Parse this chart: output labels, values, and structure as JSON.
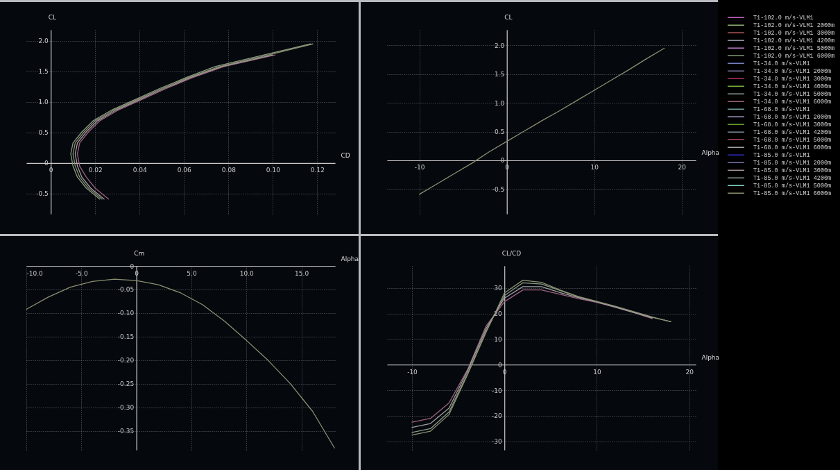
{
  "chart_data": [
    {
      "type": "line",
      "xlabel": "CD",
      "ylabel": "CL",
      "xlim": [
        -0.011,
        0.128
      ],
      "ylim": [
        -0.83,
        2.18
      ],
      "xticks": [
        0,
        0.02,
        0.04,
        0.06,
        0.08,
        {
          "value": 0.1,
          "label": "0.10"
        },
        0.12
      ],
      "yticks": [
        -0.5,
        0,
        0.5,
        {
          "value": 1,
          "label": "1.0"
        },
        1.5,
        {
          "value": 2,
          "label": "2.0"
        }
      ],
      "grid": true,
      "legend": "right",
      "series": [
        {
          "name": "T1-102.0 m/s-VLM1",
          "color": "#c060c0",
          "values": [
            null,
            null,
            null,
            null,
            null,
            null,
            null,
            null,
            null,
            null,
            null,
            null,
            null,
            null,
            null
          ]
        },
        {
          "name": "T1-102.0 m/s-VLM1 2000m",
          "color": "#90b070",
          "values": [
            null,
            null,
            null,
            null,
            null,
            null,
            null,
            null,
            null,
            null,
            null,
            null,
            null,
            null,
            null
          ]
        },
        {
          "name": "T1-102.0 m/s-VLM1 3000m",
          "color": "#c06060",
          "values": [
            null,
            null,
            null,
            null,
            null,
            null,
            null,
            null,
            null,
            null,
            null,
            null,
            null,
            null,
            null
          ]
        },
        {
          "name": "T1-102.0 m/s-VLM1 4200m",
          "color": "#9090a0",
          "values": [
            null,
            null,
            null,
            null,
            null,
            null,
            null,
            null,
            null,
            null,
            null,
            null,
            null,
            null,
            null
          ]
        },
        {
          "name": "T1-102.0 m/s-VLM1 5000m",
          "color": "#c080d0",
          "values": [
            null,
            null,
            null,
            null,
            null,
            null,
            null,
            null,
            null,
            null,
            null,
            null,
            null,
            null,
            null
          ]
        },
        {
          "name": "T1-102.0 m/s-VLM1 6000m",
          "color": "#8a9a80",
          "x": [
            0.022,
            0.016,
            0.012,
            0.01,
            0.009,
            0.01,
            0.014,
            0.019,
            0.027,
            0.038,
            0.049,
            0.061,
            0.074,
            0.096,
            0.117
          ],
          "values": [
            -0.59,
            -0.41,
            -0.23,
            -0.05,
            0.15,
            0.33,
            0.51,
            0.69,
            0.86,
            1.04,
            1.22,
            1.4,
            1.58,
            1.77,
            1.95
          ]
        },
        {
          "name": "T1-34.0 m/s-VLM1",
          "color": "#7080c0",
          "values": [
            null,
            null,
            null,
            null,
            null,
            null,
            null,
            null,
            null,
            null,
            null,
            null,
            null,
            null,
            null
          ]
        },
        {
          "name": "T1-34.0 m/s-VLM1 2000m",
          "color": "#8070a0",
          "values": [
            null,
            null,
            null,
            null,
            null,
            null,
            null,
            null,
            null,
            null,
            null,
            null,
            null,
            null,
            null
          ]
        },
        {
          "name": "T1-34.0 m/s-VLM1 3000m",
          "color": "#a03060",
          "values": [
            null,
            null,
            null,
            null,
            null,
            null,
            null,
            null,
            null,
            null,
            null,
            null,
            null,
            null,
            null
          ]
        },
        {
          "name": "T1-34.0 m/s-VLM1 4000m",
          "color": "#70b040",
          "values": [
            null,
            null,
            null,
            null,
            null,
            null,
            null,
            null,
            null,
            null,
            null,
            null,
            null,
            null,
            null
          ]
        },
        {
          "name": "T1-34.0 m/s-VLM1 5000m",
          "color": "#90a090",
          "values": [
            null,
            null,
            null,
            null,
            null,
            null,
            null,
            null,
            null,
            null,
            null,
            null,
            null,
            null,
            null
          ]
        },
        {
          "name": "T1-34.0 m/s-VLM1 6000m",
          "color": "#a06080",
          "x": [
            0.026,
            0.02,
            0.016,
            0.013,
            0.012,
            0.013,
            0.017,
            0.022,
            0.03,
            0.041,
            0.052,
            0.064,
            0.078,
            0.101,
            null
          ],
          "values": [
            -0.59,
            -0.41,
            -0.23,
            -0.05,
            0.15,
            0.33,
            0.51,
            0.69,
            0.86,
            1.04,
            1.22,
            1.4,
            1.58,
            1.77,
            null
          ]
        },
        {
          "name": "T1-68.0 m/s-VLM1",
          "color": "#70a0a0",
          "values": [
            null,
            null,
            null,
            null,
            null,
            null,
            null,
            null,
            null,
            null,
            null,
            null,
            null,
            null,
            null
          ]
        },
        {
          "name": "T1-68.0 m/s-VLM1 2000m",
          "color": "#b0a0d0",
          "values": [
            null,
            null,
            null,
            null,
            null,
            null,
            null,
            null,
            null,
            null,
            null,
            null,
            null,
            null,
            null
          ]
        },
        {
          "name": "T1-68.0 m/s-VLM1 3000m",
          "color": "#60a030",
          "values": [
            null,
            null,
            null,
            null,
            null,
            null,
            null,
            null,
            null,
            null,
            null,
            null,
            null,
            null,
            null
          ]
        },
        {
          "name": "T1-68.0 m/s-VLM1 4200m",
          "color": "#8090a0",
          "values": [
            null,
            null,
            null,
            null,
            null,
            null,
            null,
            null,
            null,
            null,
            null,
            null,
            null,
            null,
            null
          ]
        },
        {
          "name": "T1-68.0 m/s-VLM1 5000m",
          "color": "#b05070",
          "values": [
            null,
            null,
            null,
            null,
            null,
            null,
            null,
            null,
            null,
            null,
            null,
            null,
            null,
            null,
            null
          ]
        },
        {
          "name": "T1-68.0 m/s-VLM1 6000m",
          "color": "#a0a0a0",
          "x": [
            0.024,
            0.018,
            0.014,
            0.012,
            0.011,
            0.012,
            0.016,
            0.021,
            0.029,
            0.04,
            0.051,
            0.063,
            0.077,
            0.1,
            null
          ],
          "values": [
            -0.59,
            -0.41,
            -0.23,
            -0.05,
            0.15,
            0.33,
            0.51,
            0.69,
            0.86,
            1.04,
            1.22,
            1.4,
            1.58,
            1.77,
            null
          ]
        },
        {
          "name": "T1-85.0 m/s-VLM1",
          "color": "#3030c0",
          "values": [
            null,
            null,
            null,
            null,
            null,
            null,
            null,
            null,
            null,
            null,
            null,
            null,
            null,
            null,
            null
          ]
        },
        {
          "name": "T1-85.0 m/s-VLM1 2000m",
          "color": "#8070b0",
          "values": [
            null,
            null,
            null,
            null,
            null,
            null,
            null,
            null,
            null,
            null,
            null,
            null,
            null,
            null,
            null
          ]
        },
        {
          "name": "T1-85.0 m/s-VLM1 3000m",
          "color": "#a09090",
          "values": [
            null,
            null,
            null,
            null,
            null,
            null,
            null,
            null,
            null,
            null,
            null,
            null,
            null,
            null,
            null
          ]
        },
        {
          "name": "T1-85.0 m/s-VLM1 4200m",
          "color": "#8a9a90",
          "values": [
            null,
            null,
            null,
            null,
            null,
            null,
            null,
            null,
            null,
            null,
            null,
            null,
            null,
            null,
            null
          ]
        },
        {
          "name": "T1-85.0 m/s-VLM1 5000m",
          "color": "#80d0c0",
          "values": [
            null,
            null,
            null,
            null,
            null,
            null,
            null,
            null,
            null,
            null,
            null,
            null,
            null,
            null,
            null
          ]
        },
        {
          "name": "T1-85.0 m/s-VLM1 6000m",
          "color": "#8a9070",
          "x": [
            0.023,
            0.017,
            0.013,
            0.011,
            0.01,
            0.011,
            0.015,
            0.02,
            0.028,
            0.039,
            0.05,
            0.062,
            0.076,
            0.098,
            0.118
          ],
          "values": [
            -0.59,
            -0.41,
            -0.23,
            -0.05,
            0.15,
            0.33,
            0.51,
            0.69,
            0.86,
            1.04,
            1.22,
            1.4,
            1.58,
            1.77,
            1.95
          ]
        }
      ]
    },
    {
      "type": "line",
      "xlabel": "Alpha",
      "ylabel": "CL",
      "x": [
        -10,
        -8,
        -6,
        -4,
        -2,
        0,
        2,
        4,
        6,
        8,
        10,
        12,
        14,
        16,
        18
      ],
      "xlim": [
        -13.7,
        21.6
      ],
      "ylim": [
        -0.93,
        2.27
      ],
      "xticks": [
        -10,
        0,
        10,
        20
      ],
      "yticks": [
        -0.5,
        0,
        0.5,
        {
          "value": 1,
          "label": "1.0"
        },
        1.5,
        {
          "value": 2,
          "label": "2.0"
        }
      ],
      "grid": true,
      "series": [
        {
          "color": "#8a9070",
          "values": [
            -0.59,
            -0.41,
            -0.23,
            -0.05,
            0.15,
            0.33,
            0.51,
            0.69,
            0.86,
            1.04,
            1.22,
            1.4,
            1.58,
            1.77,
            1.95
          ]
        }
      ]
    },
    {
      "type": "line",
      "xlabel": "Alpha",
      "ylabel": "Cm",
      "x": [
        -10,
        -8,
        -6,
        -4,
        -2,
        0,
        2,
        4,
        6,
        8,
        10,
        12,
        14,
        16,
        18
      ],
      "xlim": [
        -10,
        18.05
      ],
      "ylim": [
        -0.39,
        0
      ],
      "xticks": [
        {
          "value": -10,
          "label": "-10.0"
        },
        {
          "value": -5,
          "label": "-5.0"
        },
        0,
        {
          "value": 5,
          "label": "5.0"
        },
        {
          "value": 10,
          "label": "10.0"
        },
        {
          "value": 15,
          "label": "15.0"
        }
      ],
      "yticks": [
        -0.35,
        {
          "value": -0.3,
          "label": "-0.30"
        },
        -0.25,
        {
          "value": -0.2,
          "label": "-0.20"
        },
        -0.15,
        {
          "value": -0.1,
          "label": "-0.10"
        },
        -0.05,
        0
      ],
      "grid": true,
      "series": [
        {
          "color": "#8a9070",
          "values": [
            -0.092,
            -0.066,
            -0.045,
            -0.033,
            -0.028,
            -0.031,
            -0.04,
            -0.057,
            -0.082,
            -0.117,
            -0.158,
            -0.201,
            -0.25,
            -0.308,
            -0.386
          ]
        }
      ]
    },
    {
      "type": "line",
      "xlabel": "Alpha",
      "ylabel": "CL/CD",
      "x": [
        -10,
        -8,
        -6,
        -4,
        -2,
        0,
        2,
        4,
        6,
        8,
        10,
        12,
        14,
        16,
        18
      ],
      "xlim": [
        -12.7,
        20.7
      ],
      "ylim": [
        -33.3,
        38.6
      ],
      "xticks": [
        -10,
        0,
        10,
        20
      ],
      "yticks": [
        -30,
        -20,
        -10,
        0,
        10,
        20,
        30
      ],
      "grid": true,
      "series": [
        {
          "color": "#8a9a80",
          "values": [
            -26.5,
            -25,
            -18.5,
            -3.5,
            13,
            27,
            32,
            31.5,
            29,
            26.5,
            24.6,
            22.7,
            20.6,
            18.5,
            16.8
          ]
        },
        {
          "color": "#a06080",
          "values": [
            -22.5,
            -21,
            -15,
            -2,
            15,
            24.6,
            29.2,
            29.2,
            27.5,
            25.8,
            24.3,
            22.4,
            20.3,
            18,
            null
          ]
        },
        {
          "color": "#a0a0a0",
          "values": [
            -24.5,
            -23,
            -17,
            -2.5,
            14,
            26,
            30.5,
            30.5,
            28.2,
            26.2,
            24.5,
            22.5,
            20.4,
            18.3,
            null
          ]
        },
        {
          "color": "#8a9070",
          "values": [
            -27.5,
            -26,
            -19.5,
            -4,
            12.5,
            28,
            33,
            32.2,
            29.2,
            26.6,
            24.7,
            22.8,
            20.7,
            18.6,
            16.8
          ]
        }
      ]
    }
  ]
}
